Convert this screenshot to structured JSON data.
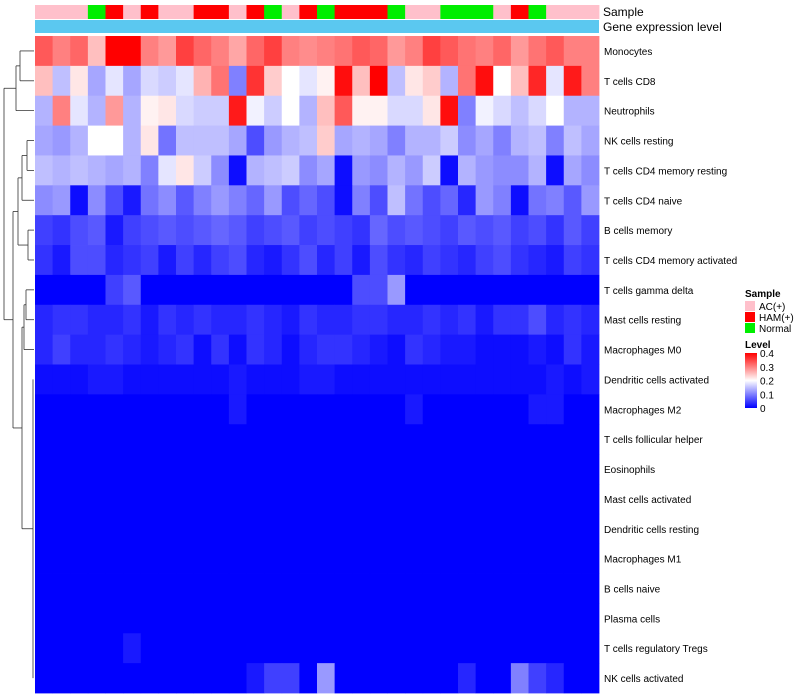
{
  "chart_data": {
    "type": "heatmap",
    "title": "",
    "annotations": {
      "sample_label": "Sample",
      "expression_label": "Gene expression level"
    },
    "samples": [
      "AC(+)",
      "AC(+)",
      "AC(+)",
      "Normal",
      "HAM(+)",
      "AC(+)",
      "HAM(+)",
      "AC(+)",
      "AC(+)",
      "HAM(+)",
      "HAM(+)",
      "AC(+)",
      "HAM(+)",
      "Normal",
      "AC(+)",
      "HAM(+)",
      "Normal",
      "HAM(+)",
      "HAM(+)",
      "HAM(+)",
      "Normal",
      "AC(+)",
      "AC(+)",
      "Normal",
      "Normal",
      "Normal",
      "AC(+)",
      "HAM(+)",
      "Normal",
      "AC(+)",
      "AC(+)",
      "AC(+)"
    ],
    "rows": [
      "Monocytes",
      "T cells CD8",
      "Neutrophils",
      "NK cells resting",
      "T cells CD4 memory resting",
      "T cells CD4 naive",
      "B cells memory",
      "T cells CD4 memory activated",
      "T cells gamma delta",
      "Mast cells resting",
      "Macrophages M0",
      "Dendritic cells activated",
      "Macrophages M2",
      "T cells follicular helper",
      "Eosinophils",
      "Mast cells activated",
      "Dendritic cells resting",
      "Macrophages M1",
      "B cells naive",
      "Plasma cells",
      "T cells regulatory  Tregs",
      "NK cells activated"
    ],
    "values": [
      [
        0.33,
        0.3,
        0.32,
        0.25,
        0.4,
        0.4,
        0.3,
        0.28,
        0.35,
        0.32,
        0.3,
        0.27,
        0.32,
        0.35,
        0.3,
        0.29,
        0.3,
        0.31,
        0.33,
        0.32,
        0.28,
        0.3,
        0.35,
        0.33,
        0.31,
        0.3,
        0.32,
        0.28,
        0.31,
        0.33,
        0.3,
        0.3
      ],
      [
        0.25,
        0.15,
        0.22,
        0.13,
        0.18,
        0.13,
        0.17,
        0.16,
        0.18,
        0.26,
        0.31,
        0.1,
        0.36,
        0.24,
        0.2,
        0.18,
        0.21,
        0.39,
        0.25,
        0.4,
        0.15,
        0.22,
        0.24,
        0.14,
        0.31,
        0.39,
        0.2,
        0.25,
        0.37,
        0.18,
        0.38,
        0.3
      ],
      [
        0.14,
        0.3,
        0.18,
        0.14,
        0.28,
        0.14,
        0.21,
        0.22,
        0.17,
        0.16,
        0.16,
        0.38,
        0.19,
        0.16,
        0.2,
        0.14,
        0.25,
        0.33,
        0.21,
        0.21,
        0.17,
        0.17,
        0.22,
        0.39,
        0.1,
        0.19,
        0.17,
        0.15,
        0.17,
        0.2,
        0.14,
        0.14
      ],
      [
        0.13,
        0.12,
        0.14,
        0.2,
        0.2,
        0.14,
        0.22,
        0.09,
        0.15,
        0.15,
        0.15,
        0.13,
        0.06,
        0.12,
        0.14,
        0.15,
        0.24,
        0.13,
        0.14,
        0.13,
        0.1,
        0.14,
        0.14,
        0.16,
        0.11,
        0.13,
        0.1,
        0.14,
        0.15,
        0.1,
        0.15,
        0.13
      ],
      [
        0.15,
        0.14,
        0.15,
        0.14,
        0.13,
        0.14,
        0.1,
        0.18,
        0.22,
        0.16,
        0.11,
        0.01,
        0.14,
        0.15,
        0.16,
        0.11,
        0.13,
        0.01,
        0.12,
        0.11,
        0.14,
        0.12,
        0.16,
        0.01,
        0.14,
        0.12,
        0.11,
        0.11,
        0.14,
        0.01,
        0.13,
        0.11
      ],
      [
        0.11,
        0.12,
        0.01,
        0.11,
        0.06,
        0.02,
        0.09,
        0.11,
        0.07,
        0.1,
        0.12,
        0.1,
        0.08,
        0.12,
        0.06,
        0.08,
        0.06,
        0.01,
        0.1,
        0.06,
        0.15,
        0.09,
        0.06,
        0.08,
        0.03,
        0.12,
        0.1,
        0.01,
        0.09,
        0.1,
        0.07,
        0.12
      ],
      [
        0.05,
        0.04,
        0.06,
        0.07,
        0.02,
        0.05,
        0.06,
        0.07,
        0.06,
        0.07,
        0.08,
        0.07,
        0.05,
        0.06,
        0.07,
        0.05,
        0.06,
        0.05,
        0.04,
        0.08,
        0.06,
        0.07,
        0.06,
        0.05,
        0.07,
        0.06,
        0.07,
        0.05,
        0.06,
        0.04,
        0.07,
        0.05
      ],
      [
        0.04,
        0.02,
        0.06,
        0.06,
        0.03,
        0.04,
        0.05,
        0.02,
        0.05,
        0.03,
        0.05,
        0.06,
        0.03,
        0.02,
        0.04,
        0.06,
        0.03,
        0.05,
        0.02,
        0.06,
        0.04,
        0.03,
        0.05,
        0.04,
        0.03,
        0.05,
        0.06,
        0.04,
        0.03,
        0.02,
        0.05,
        0.04
      ],
      [
        0.0,
        0.0,
        0.0,
        0.0,
        0.05,
        0.07,
        0.0,
        0.0,
        0.0,
        0.0,
        0.0,
        0.0,
        0.0,
        0.0,
        0.0,
        0.0,
        0.0,
        0.0,
        0.06,
        0.06,
        0.12,
        0.0,
        0.0,
        0.0,
        0.0,
        0.0,
        0.0,
        0.0,
        0.0,
        0.0,
        0.0,
        0.0
      ],
      [
        0.03,
        0.04,
        0.04,
        0.03,
        0.03,
        0.04,
        0.02,
        0.04,
        0.03,
        0.04,
        0.03,
        0.03,
        0.04,
        0.03,
        0.02,
        0.04,
        0.03,
        0.03,
        0.04,
        0.04,
        0.03,
        0.03,
        0.04,
        0.03,
        0.04,
        0.02,
        0.04,
        0.04,
        0.06,
        0.03,
        0.04,
        0.03
      ],
      [
        0.03,
        0.05,
        0.03,
        0.03,
        0.04,
        0.03,
        0.02,
        0.03,
        0.04,
        0.01,
        0.04,
        0.01,
        0.04,
        0.03,
        0.01,
        0.03,
        0.04,
        0.04,
        0.03,
        0.02,
        0.01,
        0.04,
        0.03,
        0.02,
        0.02,
        0.01,
        0.01,
        0.01,
        0.02,
        0.01,
        0.04,
        0.02
      ],
      [
        0.01,
        0.01,
        0.01,
        0.02,
        0.02,
        0.01,
        0.01,
        0.01,
        0.01,
        0.01,
        0.01,
        0.02,
        0.01,
        0.01,
        0.01,
        0.02,
        0.02,
        0.01,
        0.01,
        0.01,
        0.01,
        0.01,
        0.01,
        0.01,
        0.01,
        0.01,
        0.01,
        0.01,
        0.01,
        0.02,
        0.01,
        0.02
      ],
      [
        0.0,
        0.0,
        0.0,
        0.0,
        0.0,
        0.0,
        0.0,
        0.0,
        0.0,
        0.0,
        0.0,
        0.02,
        0.0,
        0.0,
        0.0,
        0.0,
        0.0,
        0.0,
        0.0,
        0.0,
        0.0,
        0.02,
        0.0,
        0.0,
        0.0,
        0.0,
        0.0,
        0.0,
        0.02,
        0.02,
        0.0,
        0.0
      ],
      [
        0.0,
        0.0,
        0.0,
        0.0,
        0.0,
        0.0,
        0.0,
        0.0,
        0.0,
        0.0,
        0.0,
        0.0,
        0.0,
        0.0,
        0.0,
        0.0,
        0.0,
        0.0,
        0.0,
        0.0,
        0.0,
        0.0,
        0.0,
        0.0,
        0.0,
        0.0,
        0.0,
        0.0,
        0.0,
        0.0,
        0.0,
        0.0
      ],
      [
        0.0,
        0.0,
        0.0,
        0.0,
        0.0,
        0.0,
        0.0,
        0.0,
        0.0,
        0.0,
        0.0,
        0.0,
        0.0,
        0.0,
        0.0,
        0.0,
        0.0,
        0.0,
        0.0,
        0.0,
        0.0,
        0.0,
        0.0,
        0.0,
        0.0,
        0.0,
        0.0,
        0.0,
        0.0,
        0.0,
        0.0,
        0.0
      ],
      [
        0.0,
        0.0,
        0.0,
        0.0,
        0.0,
        0.0,
        0.0,
        0.0,
        0.0,
        0.0,
        0.0,
        0.0,
        0.0,
        0.0,
        0.0,
        0.0,
        0.0,
        0.0,
        0.0,
        0.0,
        0.0,
        0.0,
        0.0,
        0.0,
        0.0,
        0.0,
        0.0,
        0.0,
        0.0,
        0.0,
        0.0,
        0.0
      ],
      [
        0.0,
        0.0,
        0.0,
        0.0,
        0.0,
        0.0,
        0.0,
        0.0,
        0.0,
        0.0,
        0.0,
        0.0,
        0.0,
        0.0,
        0.0,
        0.0,
        0.0,
        0.0,
        0.0,
        0.0,
        0.0,
        0.0,
        0.0,
        0.0,
        0.0,
        0.0,
        0.0,
        0.0,
        0.0,
        0.0,
        0.0,
        0.0
      ],
      [
        0.0,
        0.0,
        0.0,
        0.0,
        0.0,
        0.0,
        0.0,
        0.0,
        0.0,
        0.0,
        0.0,
        0.0,
        0.0,
        0.0,
        0.0,
        0.0,
        0.0,
        0.0,
        0.0,
        0.0,
        0.0,
        0.0,
        0.0,
        0.0,
        0.0,
        0.0,
        0.0,
        0.0,
        0.0,
        0.0,
        0.0,
        0.0
      ],
      [
        0.0,
        0.0,
        0.0,
        0.0,
        0.0,
        0.0,
        0.0,
        0.0,
        0.0,
        0.0,
        0.0,
        0.0,
        0.0,
        0.0,
        0.0,
        0.0,
        0.0,
        0.0,
        0.0,
        0.0,
        0.0,
        0.0,
        0.0,
        0.0,
        0.0,
        0.0,
        0.0,
        0.0,
        0.0,
        0.0,
        0.0,
        0.0
      ],
      [
        0.0,
        0.0,
        0.0,
        0.0,
        0.0,
        0.0,
        0.0,
        0.0,
        0.0,
        0.0,
        0.0,
        0.0,
        0.0,
        0.0,
        0.0,
        0.0,
        0.0,
        0.0,
        0.0,
        0.0,
        0.0,
        0.0,
        0.0,
        0.0,
        0.0,
        0.0,
        0.0,
        0.0,
        0.0,
        0.0,
        0.0,
        0.0
      ],
      [
        0.0,
        0.0,
        0.0,
        0.0,
        0.0,
        0.02,
        0.0,
        0.0,
        0.0,
        0.0,
        0.0,
        0.0,
        0.0,
        0.0,
        0.0,
        0.0,
        0.0,
        0.0,
        0.0,
        0.0,
        0.0,
        0.0,
        0.0,
        0.0,
        0.0,
        0.0,
        0.0,
        0.0,
        0.0,
        0.0,
        0.0,
        0.0
      ],
      [
        0.0,
        0.0,
        0.0,
        0.0,
        0.0,
        0.0,
        0.0,
        0.0,
        0.0,
        0.0,
        0.0,
        0.0,
        0.02,
        0.05,
        0.05,
        0.0,
        0.12,
        0.0,
        0.0,
        0.0,
        0.0,
        0.0,
        0.0,
        0.0,
        0.03,
        0.0,
        0.0,
        0.1,
        0.05,
        0.03,
        0.0,
        0.0
      ]
    ],
    "color_scale": {
      "min": 0,
      "max": 0.4,
      "low": "#0000ff",
      "mid": "#ffffff",
      "high": "#ff0000"
    },
    "legend": {
      "sample_title": "Sample",
      "groups": [
        {
          "label": "AC(+)",
          "color": "#ffc0cb"
        },
        {
          "label": "HAM(+)",
          "color": "#ff0000"
        },
        {
          "label": "Normal",
          "color": "#00ee00"
        }
      ],
      "level_title": "Level",
      "level_ticks": [
        {
          "value": 0.4,
          "label": "0.4"
        },
        {
          "value": 0.3,
          "label": "0.3"
        },
        {
          "value": 0.2,
          "label": "0.2"
        },
        {
          "value": 0.1,
          "label": "0.1"
        },
        {
          "value": 0,
          "label": "0"
        }
      ]
    },
    "expression_bar_color": "#5bc8f0"
  }
}
